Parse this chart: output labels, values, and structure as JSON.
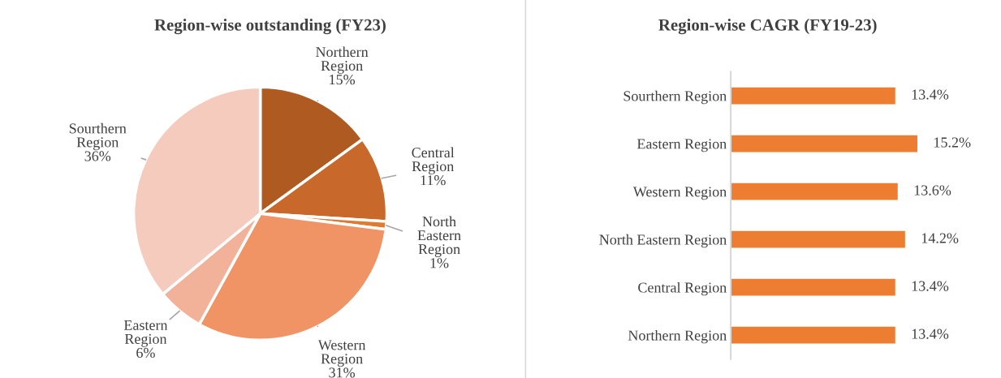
{
  "chart_data": [
    {
      "type": "pie",
      "title": "Region-wise outstanding (FY23)",
      "categories": [
        "Northern Region",
        "Central Region",
        "North Eastern Region",
        "Western Region",
        "Eastern Region",
        "Sourthern Region"
      ],
      "values": [
        15,
        11,
        1,
        31,
        6,
        36
      ],
      "colors": [
        "#ae5a21",
        "#c8682a",
        "#e07a30",
        "#f09466",
        "#f2b199",
        "#f5cbbd"
      ],
      "value_labels": [
        "15%",
        "11%",
        "1%",
        "31%",
        "6%",
        "36%"
      ]
    },
    {
      "type": "bar",
      "title": "Region-wise CAGR (FY19-23)",
      "orientation": "horizontal",
      "categories": [
        "Sourthern Region",
        "Eastern Region",
        "Western Region",
        "North Eastern Region",
        "Central Region",
        "Northern Region"
      ],
      "values": [
        13.4,
        15.2,
        13.6,
        14.2,
        13.4,
        13.4
      ],
      "color": "#ed7d31",
      "tick_labels": "y",
      "value_labels": [
        "13.4%",
        "15.2%",
        "13.6%",
        "14.2%",
        "13.4%",
        "13.4%"
      ]
    }
  ]
}
